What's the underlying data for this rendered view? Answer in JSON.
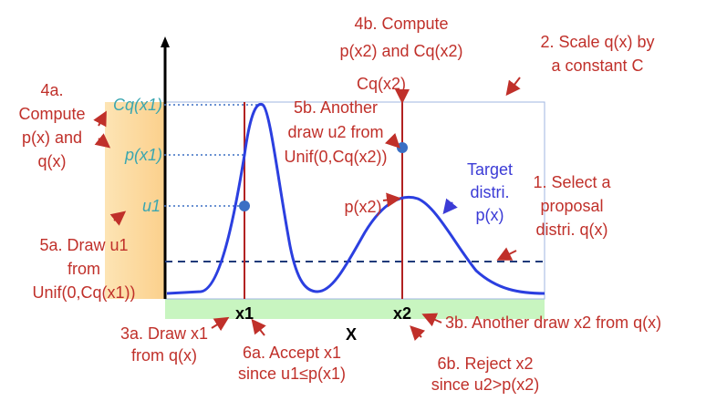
{
  "annotations": {
    "compute_4b": [
      "4b. Compute",
      "p(x2) and Cq(x2)"
    ],
    "scale_2": [
      "2. Scale q(x) by",
      "a constant C"
    ],
    "compute_4a": [
      "4a.",
      "Compute",
      "p(x) and",
      "q(x)"
    ],
    "cq_x1": "Cq(x1)",
    "p_x1": "p(x1)",
    "u1": "u1",
    "draw_5a": [
      "5a. Draw u1",
      "from",
      "Unif(0,Cq(x1))"
    ],
    "cq_x2": "Cq(x2)",
    "draw_5b": [
      "5b. Another",
      "draw u2 from",
      "Unif(0,Cq(x2))"
    ],
    "target": [
      "Target",
      "distri.",
      "p(x)"
    ],
    "select_1": [
      "1. Select a",
      "proposal",
      "distri. q(x)"
    ],
    "p_x2": "p(x2)",
    "x1": "x1",
    "x2": "x2",
    "x_axis": "X",
    "draw_3a": [
      "3a. Draw x1",
      "from q(x)"
    ],
    "accept_6a": [
      "6a. Accept x1",
      "since u1≤p(x1)"
    ],
    "draw_3b": "3b. Another draw x2 from q(x)",
    "reject_6b": [
      "6b. Reject x2",
      "since u2>p(x2)"
    ]
  }
}
